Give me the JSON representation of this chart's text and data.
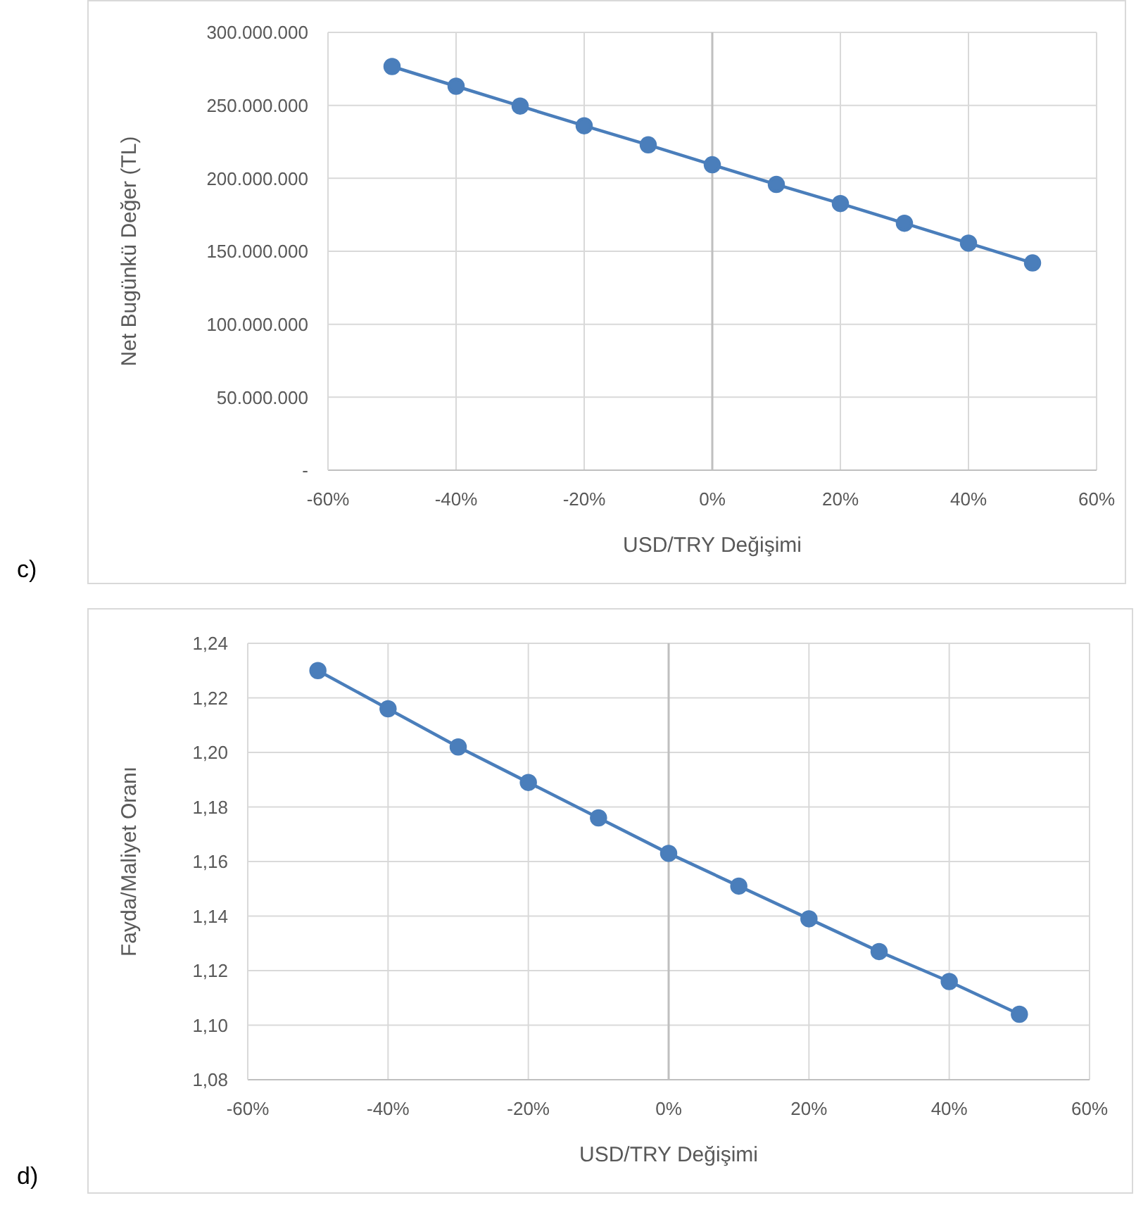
{
  "chart_data": [
    {
      "type": "line",
      "xlabel": "USD/TRY Değişimi",
      "ylabel": "Net Bugünkü Değer (TL)",
      "annotations": [
        "c)"
      ],
      "x": [
        -0.5,
        -0.4,
        -0.3,
        -0.2,
        -0.1,
        0,
        0.1,
        0.2,
        0.3,
        0.4,
        0.5
      ],
      "series": [
        {
          "color": "#4a7ebb",
          "values": [
            276600000,
            263100000,
            249500000,
            236000000,
            222900000,
            209300000,
            195800000,
            182700000,
            169200000,
            155600000,
            142000000
          ]
        }
      ],
      "xlim": [
        -0.6,
        0.6
      ],
      "xticks": [
        {
          "value": -0.6,
          "label": "-60%"
        },
        {
          "value": -0.4,
          "label": "-40%"
        },
        {
          "value": -0.2,
          "label": "-20%"
        },
        {
          "value": 0,
          "label": "0%"
        },
        {
          "value": 0.2,
          "label": "20%"
        },
        {
          "value": 0.4,
          "label": "40%"
        },
        {
          "value": 0.6,
          "label": "60%"
        }
      ],
      "ylim": [
        0,
        300000000
      ],
      "yticks": [
        {
          "value": 0,
          "label": "-"
        },
        {
          "value": 50000000,
          "label": "50.000.000"
        },
        {
          "value": 100000000,
          "label": "100.000.000"
        },
        {
          "value": 150000000,
          "label": "150.000.000"
        },
        {
          "value": 200000000,
          "label": "200.000.000"
        },
        {
          "value": 250000000,
          "label": "250.000.000"
        },
        {
          "value": 300000000,
          "label": "300.000.000"
        }
      ],
      "ref_lines": [
        {
          "axis": "x",
          "value": 0,
          "color": "#bfbfbf"
        }
      ],
      "grid": true,
      "marker": "circle",
      "line_style": "solid",
      "legend": false
    },
    {
      "type": "line",
      "xlabel": "USD/TRY Değişimi",
      "ylabel": "Fayda/Maliyet Oranı",
      "annotations": [
        "d)"
      ],
      "x": [
        -0.5,
        -0.4,
        -0.3,
        -0.2,
        -0.1,
        0,
        0.1,
        0.2,
        0.3,
        0.4,
        0.5
      ],
      "series": [
        {
          "color": "#4a7ebb",
          "values": [
            1.23,
            1.216,
            1.202,
            1.189,
            1.176,
            1.163,
            1.151,
            1.139,
            1.127,
            1.116,
            1.104
          ]
        }
      ],
      "xlim": [
        -0.6,
        0.6
      ],
      "xticks": [
        {
          "value": -0.6,
          "label": "-60%"
        },
        {
          "value": -0.4,
          "label": "-40%"
        },
        {
          "value": -0.2,
          "label": "-20%"
        },
        {
          "value": 0,
          "label": "0%"
        },
        {
          "value": 0.2,
          "label": "20%"
        },
        {
          "value": 0.4,
          "label": "40%"
        },
        {
          "value": 0.6,
          "label": "60%"
        }
      ],
      "ylim": [
        1.08,
        1.24
      ],
      "yticks": [
        {
          "value": 1.08,
          "label": "1,08"
        },
        {
          "value": 1.1,
          "label": "1,10"
        },
        {
          "value": 1.12,
          "label": "1,12"
        },
        {
          "value": 1.14,
          "label": "1,14"
        },
        {
          "value": 1.16,
          "label": "1,16"
        },
        {
          "value": 1.18,
          "label": "1,18"
        },
        {
          "value": 1.2,
          "label": "1,20"
        },
        {
          "value": 1.22,
          "label": "1,22"
        },
        {
          "value": 1.24,
          "label": "1,24"
        }
      ],
      "ref_lines": [
        {
          "axis": "x",
          "value": 0,
          "color": "#bfbfbf"
        }
      ],
      "grid": true,
      "marker": "circle",
      "line_style": "solid",
      "legend": false
    }
  ]
}
